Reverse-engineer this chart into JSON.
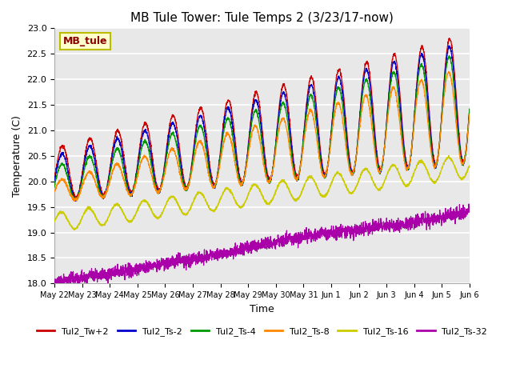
{
  "title": "MB Tule Tower: Tule Temps 2 (3/23/17-now)",
  "xlabel": "Time",
  "ylabel": "Temperature (C)",
  "ylim": [
    18.0,
    23.0
  ],
  "yticks": [
    18.0,
    18.5,
    19.0,
    19.5,
    20.0,
    20.5,
    21.0,
    21.5,
    22.0,
    22.5,
    23.0
  ],
  "bg_color": "#e8e8e8",
  "fig_color": "#ffffff",
  "annotation_text": "MB_tule",
  "annotation_color": "#8b0000",
  "annotation_bg": "#ffffcc",
  "annotation_border": "#bbbb00",
  "legend_entries": [
    "Tul2_Tw+2",
    "Tul2_Ts-2",
    "Tul2_Ts-4",
    "Tul2_Ts-8",
    "Tul2_Ts-16",
    "Tul2_Ts-32"
  ],
  "line_colors": [
    "#cc0000",
    "#0000cc",
    "#009900",
    "#ff8800",
    "#cccc00",
    "#aa00aa"
  ],
  "x_tick_labels": [
    "May 22",
    "May 23",
    "May 24",
    "May 25",
    "May 26",
    "May 27",
    "May 28",
    "May 29",
    "May 30",
    "May 31",
    "Jun 1",
    "Jun 2",
    "Jun 3",
    "Jun 4",
    "Jun 5",
    "Jun 6"
  ]
}
